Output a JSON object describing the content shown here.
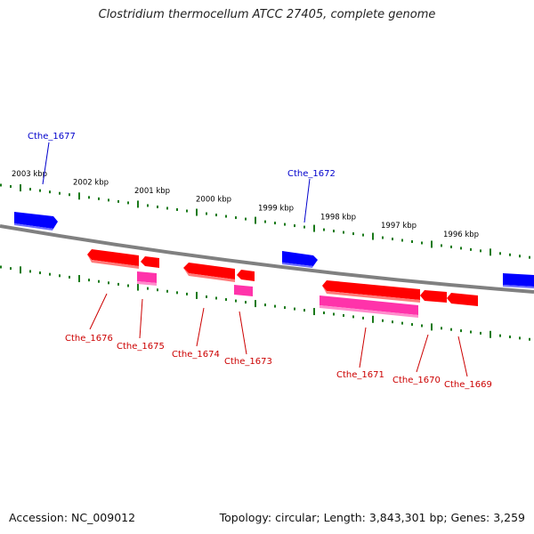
{
  "title": "Clostridium thermocellum ATCC 27405, complete genome",
  "footer": {
    "accession": "Accession: NC_009012",
    "summary": "Topology: circular; Length: 3,843,301 bp; Genes: 3,259"
  },
  "colors": {
    "backbone": "#808080",
    "ticks": "#1a7a1a",
    "forward_gene": "#0000ff",
    "reverse_gene": "#ff0000",
    "reverse_gene_alt": "#ff33aa",
    "forward_label": "#0000cc",
    "reverse_label": "#cc0000",
    "tick_label": "#000000"
  },
  "scale_labels": [
    "2003 kbp",
    "2002 kbp",
    "2001 kbp",
    "2000 kbp",
    "1999 kbp",
    "1998 kbp",
    "1997 kbp",
    "1996 kbp"
  ],
  "genes": [
    {
      "label": "Cthe_1677",
      "strand": "forward"
    },
    {
      "label": "Cthe_1672",
      "strand": "forward"
    },
    {
      "label": "",
      "strand": "forward"
    },
    {
      "label": "Cthe_1676",
      "strand": "reverse"
    },
    {
      "label": "Cthe_1675",
      "strand": "reverse"
    },
    {
      "label": "Cthe_1674",
      "strand": "reverse"
    },
    {
      "label": "Cthe_1673",
      "strand": "reverse"
    },
    {
      "label": "Cthe_1671",
      "strand": "reverse"
    },
    {
      "label": "Cthe_1670",
      "strand": "reverse"
    },
    {
      "label": "Cthe_1669",
      "strand": "reverse"
    }
  ]
}
